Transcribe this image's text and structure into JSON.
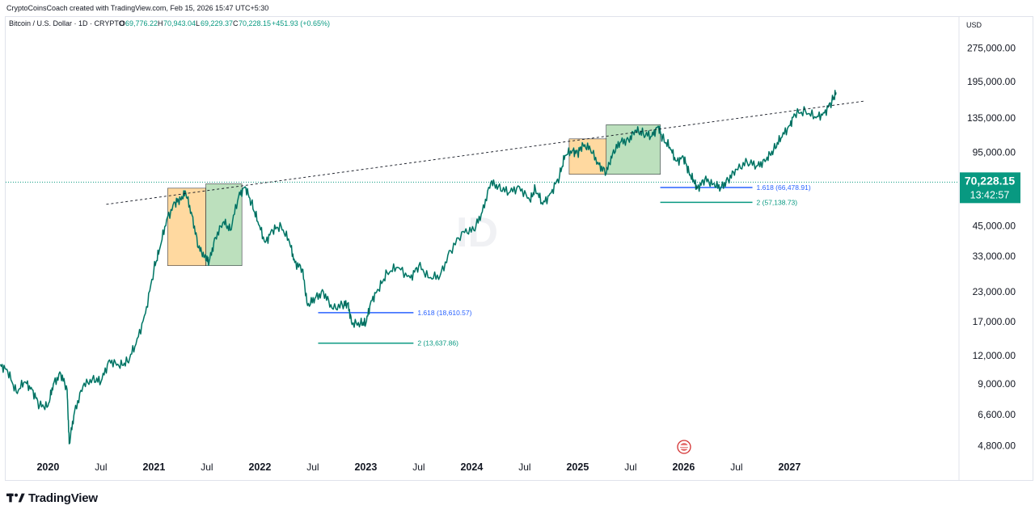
{
  "header": {
    "credit": "CryptoCoinsCoach created with TradingView.com, Feb 15, 2026 15:47 UTC+5:30"
  },
  "legend": {
    "symbol": "Bitcoin / U.S. Dollar · 1D · CRYPTO",
    "open_label": "O",
    "open": "69,776.22",
    "high_label": "H",
    "high": "70,943.04",
    "low_label": "L",
    "low": "69,229.37",
    "close_label": "C",
    "close": "70,228.15",
    "change": "+451.93 (+0.65%)"
  },
  "price_axis": {
    "currency": "USD",
    "last_price_label": "70,228.15",
    "countdown": "13:42:57"
  },
  "watermark": "ID",
  "footer": {
    "brand": "TradingView"
  },
  "colors": {
    "up": "#089981",
    "down": "#131722",
    "orange_box": "#ffcc80",
    "green_box": "#a5d6a7",
    "fib_blue": "#2962ff",
    "fib_green": "#089981",
    "accent_badge": "#089981"
  },
  "chart_data": {
    "type": "line",
    "title": "Bitcoin / U.S. Dollar · 1D · CRYPTO",
    "ylabel": "USD",
    "yscale": "log",
    "ylim": [
      4300,
      380000
    ],
    "xlim": [
      2019.6,
      2028.6
    ],
    "y_ticks": [
      4800,
      6600,
      9000,
      12000,
      17000,
      23000,
      33000,
      45000,
      95000,
      135000,
      195000,
      275000
    ],
    "y_tick_labels": [
      "4,800.00",
      "6,600.00",
      "9,000.00",
      "12,000.00",
      "17,000.00",
      "23,000.00",
      "33,000.00",
      "45,000.00",
      "95,000.00",
      "135,000.00",
      "195,000.00",
      "275,000.00"
    ],
    "x_ticks": [
      {
        "label": "2020",
        "t": 2020.0,
        "bold": true
      },
      {
        "label": "Jul",
        "t": 2020.5,
        "bold": false
      },
      {
        "label": "2021",
        "t": 2021.0,
        "bold": true
      },
      {
        "label": "Jul",
        "t": 2021.5,
        "bold": false
      },
      {
        "label": "2022",
        "t": 2022.0,
        "bold": true
      },
      {
        "label": "Jul",
        "t": 2022.5,
        "bold": false
      },
      {
        "label": "2023",
        "t": 2023.0,
        "bold": true
      },
      {
        "label": "Jul",
        "t": 2023.5,
        "bold": false
      },
      {
        "label": "2024",
        "t": 2024.0,
        "bold": true
      },
      {
        "label": "Jul",
        "t": 2024.5,
        "bold": false
      },
      {
        "label": "2025",
        "t": 2025.0,
        "bold": true
      },
      {
        "label": "Jul",
        "t": 2025.5,
        "bold": false
      },
      {
        "label": "2026",
        "t": 2026.0,
        "bold": true
      },
      {
        "label": "Jul",
        "t": 2026.5,
        "bold": false
      },
      {
        "label": "2027",
        "t": 2027.0,
        "bold": true
      }
    ],
    "series": [
      {
        "name": "BTCUSD",
        "points": [
          [
            2019.55,
            11000
          ],
          [
            2019.62,
            10200
          ],
          [
            2019.7,
            8300
          ],
          [
            2019.78,
            9200
          ],
          [
            2019.85,
            8500
          ],
          [
            2019.92,
            7200
          ],
          [
            2020.0,
            7200
          ],
          [
            2020.05,
            9000
          ],
          [
            2020.12,
            10000
          ],
          [
            2020.18,
            8500
          ],
          [
            2020.2,
            4900
          ],
          [
            2020.25,
            6800
          ],
          [
            2020.33,
            8800
          ],
          [
            2020.42,
            9500
          ],
          [
            2020.5,
            9200
          ],
          [
            2020.58,
            11500
          ],
          [
            2020.67,
            10800
          ],
          [
            2020.75,
            11300
          ],
          [
            2020.83,
            13500
          ],
          [
            2020.92,
            18500
          ],
          [
            2021.0,
            29000
          ],
          [
            2021.05,
            35000
          ],
          [
            2021.12,
            48000
          ],
          [
            2021.2,
            57000
          ],
          [
            2021.25,
            59000
          ],
          [
            2021.3,
            63000
          ],
          [
            2021.36,
            50000
          ],
          [
            2021.42,
            36000
          ],
          [
            2021.48,
            33000
          ],
          [
            2021.52,
            31000
          ],
          [
            2021.58,
            40000
          ],
          [
            2021.66,
            47000
          ],
          [
            2021.72,
            43000
          ],
          [
            2021.8,
            61000
          ],
          [
            2021.86,
            67000
          ],
          [
            2021.92,
            57000
          ],
          [
            2021.98,
            47000
          ],
          [
            2022.05,
            38000
          ],
          [
            2022.12,
            43000
          ],
          [
            2022.2,
            45000
          ],
          [
            2022.28,
            38000
          ],
          [
            2022.33,
            31000
          ],
          [
            2022.4,
            29000
          ],
          [
            2022.45,
            20000
          ],
          [
            2022.52,
            21500
          ],
          [
            2022.6,
            23000
          ],
          [
            2022.68,
            19500
          ],
          [
            2022.78,
            20000
          ],
          [
            2022.83,
            20500
          ],
          [
            2022.87,
            16500
          ],
          [
            2022.95,
            16800
          ],
          [
            2023.0,
            16600
          ],
          [
            2023.05,
            21000
          ],
          [
            2023.12,
            23500
          ],
          [
            2023.2,
            28000
          ],
          [
            2023.3,
            29500
          ],
          [
            2023.42,
            26500
          ],
          [
            2023.5,
            30000
          ],
          [
            2023.6,
            26500
          ],
          [
            2023.7,
            27000
          ],
          [
            2023.8,
            35000
          ],
          [
            2023.92,
            42500
          ],
          [
            2024.02,
            43000
          ],
          [
            2024.1,
            52000
          ],
          [
            2024.18,
            70000
          ],
          [
            2024.25,
            67000
          ],
          [
            2024.35,
            63000
          ],
          [
            2024.45,
            67000
          ],
          [
            2024.55,
            58000
          ],
          [
            2024.6,
            66000
          ],
          [
            2024.67,
            56000
          ],
          [
            2024.75,
            63000
          ],
          [
            2024.83,
            75000
          ],
          [
            2024.88,
            92000
          ],
          [
            2024.95,
            97000
          ],
          [
            2025.0,
            94000
          ],
          [
            2025.05,
            103000
          ],
          [
            2025.12,
            98000
          ],
          [
            2025.2,
            84000
          ],
          [
            2025.27,
            77000
          ],
          [
            2025.33,
            94000
          ],
          [
            2025.4,
            105000
          ],
          [
            2025.48,
            108000
          ],
          [
            2025.55,
            119000
          ],
          [
            2025.62,
            115000
          ],
          [
            2025.7,
            112000
          ],
          [
            2025.76,
            124000
          ],
          [
            2025.8,
            110000
          ],
          [
            2025.87,
            100000
          ],
          [
            2025.93,
            87000
          ],
          [
            2026.0,
            90000
          ],
          [
            2026.05,
            78000
          ],
          [
            2026.1,
            70000
          ],
          [
            2026.13,
            66000
          ],
          [
            2026.2,
            72000
          ],
          [
            2026.28,
            69000
          ],
          [
            2026.35,
            66000
          ],
          [
            2026.42,
            72000
          ],
          [
            2026.5,
            80000
          ],
          [
            2026.6,
            86000
          ],
          [
            2026.7,
            83000
          ],
          [
            2026.78,
            88000
          ],
          [
            2026.85,
            98000
          ],
          [
            2026.92,
            110000
          ],
          [
            2027.0,
            125000
          ],
          [
            2027.05,
            140000
          ],
          [
            2027.15,
            145000
          ],
          [
            2027.25,
            135000
          ],
          [
            2027.33,
            142000
          ],
          [
            2027.4,
            160000
          ],
          [
            2027.44,
            175000
          ]
        ]
      }
    ],
    "last_price": 70228.15,
    "trendline": {
      "from": [
        2020.55,
        56000
      ],
      "to": [
        2027.7,
        160000
      ],
      "style": "dashed"
    },
    "boxes": [
      {
        "name": "orange-box-2021",
        "t0": 2021.13,
        "t1": 2021.49,
        "p0": 30000,
        "p1": 66000,
        "color": "orange"
      },
      {
        "name": "green-box-2021",
        "t0": 2021.49,
        "t1": 2021.83,
        "p0": 30000,
        "p1": 69000,
        "color": "green"
      },
      {
        "name": "orange-box-2025",
        "t0": 2024.92,
        "t1": 2025.27,
        "p0": 76000,
        "p1": 109000,
        "color": "orange"
      },
      {
        "name": "green-box-2025",
        "t0": 2025.27,
        "t1": 2025.78,
        "p0": 76000,
        "p1": 126000,
        "color": "green"
      }
    ],
    "fib_levels": [
      {
        "name": "fib-1618-2022",
        "t0": 2022.55,
        "t1": 2023.45,
        "price": 18610.57,
        "label": "1.618 (18,610.57)",
        "color": "blue"
      },
      {
        "name": "fib-2-2022",
        "t0": 2022.55,
        "t1": 2023.45,
        "price": 13637.86,
        "label": "2 (13,637.86)",
        "color": "green"
      },
      {
        "name": "fib-1618-2026",
        "t0": 2025.78,
        "t1": 2026.65,
        "price": 66478.91,
        "label": "1.618 (66,478.91)",
        "color": "blue"
      },
      {
        "name": "fib-2-2026",
        "t0": 2025.78,
        "t1": 2026.65,
        "price": 57138.73,
        "label": "2 (57,138.73)",
        "color": "green"
      }
    ]
  }
}
